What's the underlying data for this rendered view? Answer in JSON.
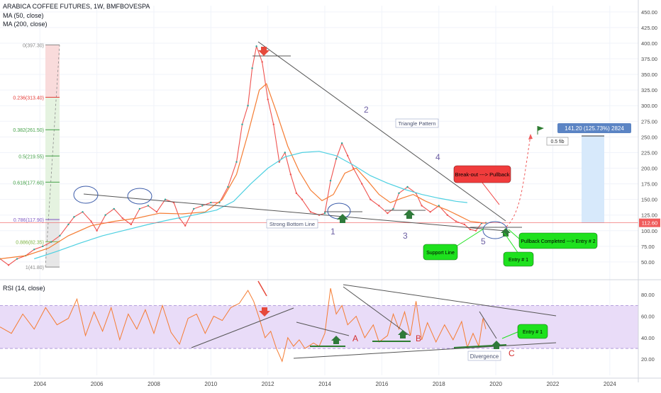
{
  "header": {
    "symbol_line": "ARABICA COFFEE FUTURES, 1W, BMFBOVESPA",
    "ma50_label": "MA (50, close)",
    "ma200_label": "MA (200, close)",
    "rsi_label": "RSI (14, close)"
  },
  "colors": {
    "price_up": "#26a69a",
    "price_down": "#ef5350",
    "ma50": "#f57c32",
    "ma200": "#4dd0e1",
    "rsi_line": "#f57c32",
    "rsi_band": "#e9dcf8",
    "trendline": "#555555",
    "green_label": "#1ee11e",
    "red_label": "#f03c3c",
    "current_price": "#f05b5b",
    "projection_box": "#d7e9fb",
    "projection_label": "#5b84c4"
  },
  "chart_data": [
    {
      "type": "line",
      "pane": "price",
      "x_axis": {
        "labels": [
          "2004",
          "2006",
          "2008",
          "2010",
          "2012",
          "2014",
          "2016",
          "2018",
          "2020",
          "2022",
          "2024"
        ],
        "range": [
          2002.6,
          2025.0
        ]
      },
      "y_axis": {
        "labels": [
          "450.00",
          "425.00",
          "400.00",
          "375.00",
          "350.00",
          "325.00",
          "300.00",
          "275.00",
          "250.00",
          "225.00",
          "200.00",
          "175.00",
          "150.00",
          "125.00",
          "100.00",
          "75.00",
          "50.00"
        ],
        "range": [
          25,
          460
        ]
      },
      "current_price": {
        "value": 112.6,
        "label": "112.60"
      },
      "series": [
        {
          "key": "price",
          "points": [
            [
              2002.6,
              55
            ],
            [
              2002.9,
              45
            ],
            [
              2003.2,
              55
            ],
            [
              2003.5,
              60
            ],
            [
              2003.8,
              70
            ],
            [
              2004.1,
              75
            ],
            [
              2004.4,
              82
            ],
            [
              2004.7,
              92
            ],
            [
              2005.0,
              110
            ],
            [
              2005.2,
              122
            ],
            [
              2005.5,
              130
            ],
            [
              2005.8,
              115
            ],
            [
              2006.0,
              100
            ],
            [
              2006.3,
              125
            ],
            [
              2006.6,
              135
            ],
            [
              2006.9,
              120
            ],
            [
              2007.2,
              110
            ],
            [
              2007.5,
              135
            ],
            [
              2007.8,
              140
            ],
            [
              2008.1,
              130
            ],
            [
              2008.4,
              150
            ],
            [
              2008.7,
              145
            ],
            [
              2008.9,
              120
            ],
            [
              2009.1,
              108
            ],
            [
              2009.4,
              135
            ],
            [
              2009.7,
              140
            ],
            [
              2010.0,
              145
            ],
            [
              2010.3,
              145
            ],
            [
              2010.6,
              170
            ],
            [
              2010.9,
              210
            ],
            [
              2011.1,
              270
            ],
            [
              2011.3,
              300
            ],
            [
              2011.45,
              360
            ],
            [
              2011.6,
              395
            ],
            [
              2011.8,
              370
            ],
            [
              2012.0,
              310
            ],
            [
              2012.2,
              270
            ],
            [
              2012.4,
              210
            ],
            [
              2012.6,
              225
            ],
            [
              2012.8,
              190
            ],
            [
              2013.0,
              160
            ],
            [
              2013.2,
              150
            ],
            [
              2013.5,
              130
            ],
            [
              2013.8,
              125
            ],
            [
              2014.0,
              128
            ],
            [
              2014.2,
              180
            ],
            [
              2014.4,
              215
            ],
            [
              2014.6,
              240
            ],
            [
              2014.8,
              220
            ],
            [
              2015.0,
              200
            ],
            [
              2015.3,
              175
            ],
            [
              2015.6,
              150
            ],
            [
              2015.9,
              140
            ],
            [
              2016.2,
              128
            ],
            [
              2016.4,
              135
            ],
            [
              2016.6,
              160
            ],
            [
              2016.9,
              170
            ],
            [
              2017.2,
              160
            ],
            [
              2017.4,
              140
            ],
            [
              2017.7,
              130
            ],
            [
              2018.0,
              140
            ],
            [
              2018.3,
              125
            ],
            [
              2018.6,
              115
            ],
            [
              2018.9,
              110
            ],
            [
              2019.1,
              102
            ],
            [
              2019.3,
              100
            ],
            [
              2019.5,
              112
            ],
            [
              2019.65,
              112.6
            ]
          ]
        },
        {
          "key": "ma50",
          "points": [
            [
              2002.6,
              55
            ],
            [
              2003.5,
              60
            ],
            [
              2004.3,
              72
            ],
            [
              2005.0,
              92
            ],
            [
              2005.8,
              108
            ],
            [
              2006.6,
              115
            ],
            [
              2007.4,
              120
            ],
            [
              2008.2,
              128
            ],
            [
              2009.0,
              127
            ],
            [
              2009.8,
              130
            ],
            [
              2010.4,
              150
            ],
            [
              2010.9,
              190
            ],
            [
              2011.3,
              255
            ],
            [
              2011.7,
              325
            ],
            [
              2011.95,
              335
            ],
            [
              2012.3,
              290
            ],
            [
              2012.7,
              235
            ],
            [
              2013.1,
              195
            ],
            [
              2013.5,
              165
            ],
            [
              2013.9,
              148
            ],
            [
              2014.3,
              158
            ],
            [
              2014.7,
              192
            ],
            [
              2015.1,
              200
            ],
            [
              2015.5,
              180
            ],
            [
              2015.9,
              158
            ],
            [
              2016.3,
              145
            ],
            [
              2016.7,
              152
            ],
            [
              2017.1,
              158
            ],
            [
              2017.5,
              148
            ],
            [
              2017.9,
              140
            ],
            [
              2018.3,
              133
            ],
            [
              2018.7,
              124
            ],
            [
              2019.1,
              115
            ],
            [
              2019.65,
              112
            ]
          ]
        },
        {
          "key": "ma200",
          "points": [
            [
              2003.8,
              55
            ],
            [
              2004.6,
              67
            ],
            [
              2005.4,
              80
            ],
            [
              2006.2,
              92
            ],
            [
              2007.0,
              101
            ],
            [
              2007.8,
              110
            ],
            [
              2008.6,
              118
            ],
            [
              2009.4,
              125
            ],
            [
              2010.2,
              133
            ],
            [
              2010.8,
              147
            ],
            [
              2011.4,
              175
            ],
            [
              2012.0,
              200
            ],
            [
              2012.6,
              218
            ],
            [
              2013.2,
              225
            ],
            [
              2013.8,
              227
            ],
            [
              2014.4,
              220
            ],
            [
              2015.0,
              205
            ],
            [
              2015.6,
              188
            ],
            [
              2016.2,
              176
            ],
            [
              2016.8,
              166
            ],
            [
              2017.4,
              158
            ],
            [
              2018.0,
              152
            ],
            [
              2018.6,
              147
            ],
            [
              2019.0,
              145
            ]
          ]
        }
      ]
    },
    {
      "type": "line",
      "pane": "rsi",
      "y_axis": {
        "labels": [
          "80.00",
          "60.00",
          "40.00",
          "20.00"
        ],
        "range": [
          5,
          92
        ]
      },
      "band": [
        30,
        70
      ],
      "series": [
        {
          "key": "rsi",
          "points": [
            [
              2002.6,
              50
            ],
            [
              2003.0,
              44
            ],
            [
              2003.4,
              62
            ],
            [
              2003.8,
              48
            ],
            [
              2004.2,
              68
            ],
            [
              2004.6,
              52
            ],
            [
              2005.0,
              58
            ],
            [
              2005.3,
              76
            ],
            [
              2005.6,
              42
            ],
            [
              2005.9,
              64
            ],
            [
              2006.2,
              46
            ],
            [
              2006.5,
              68
            ],
            [
              2006.8,
              38
            ],
            [
              2007.1,
              62
            ],
            [
              2007.4,
              48
            ],
            [
              2007.7,
              66
            ],
            [
              2008.0,
              44
            ],
            [
              2008.3,
              70
            ],
            [
              2008.6,
              45
            ],
            [
              2008.9,
              34
            ],
            [
              2009.2,
              58
            ],
            [
              2009.5,
              62
            ],
            [
              2009.8,
              44
            ],
            [
              2010.1,
              60
            ],
            [
              2010.4,
              56
            ],
            [
              2010.7,
              68
            ],
            [
              2011.0,
              72
            ],
            [
              2011.3,
              84
            ],
            [
              2011.5,
              74
            ],
            [
              2011.7,
              58
            ],
            [
              2011.9,
              40
            ],
            [
              2012.1,
              46
            ],
            [
              2012.3,
              30
            ],
            [
              2012.5,
              18
            ],
            [
              2012.7,
              40
            ],
            [
              2012.9,
              32
            ],
            [
              2013.1,
              38
            ],
            [
              2013.3,
              30
            ],
            [
              2013.6,
              35
            ],
            [
              2013.8,
              32
            ],
            [
              2014.0,
              44
            ],
            [
              2014.2,
              86
            ],
            [
              2014.4,
              62
            ],
            [
              2014.6,
              70
            ],
            [
              2014.8,
              52
            ],
            [
              2015.1,
              60
            ],
            [
              2015.4,
              40
            ],
            [
              2015.7,
              52
            ],
            [
              2015.9,
              36
            ],
            [
              2016.2,
              42
            ],
            [
              2016.4,
              62
            ],
            [
              2016.6,
              48
            ],
            [
              2016.8,
              64
            ],
            [
              2017.0,
              42
            ],
            [
              2017.2,
              74
            ],
            [
              2017.4,
              38
            ],
            [
              2017.6,
              54
            ],
            [
              2017.9,
              36
            ],
            [
              2018.2,
              52
            ],
            [
              2018.5,
              38
            ],
            [
              2018.8,
              55
            ],
            [
              2019.0,
              31
            ],
            [
              2019.2,
              44
            ],
            [
              2019.4,
              32
            ],
            [
              2019.55,
              58
            ],
            [
              2019.65,
              48
            ]
          ]
        }
      ]
    }
  ],
  "fib": {
    "levels": [
      {
        "ratio": 0,
        "label": "0(397.30)",
        "color": "#888888"
      },
      {
        "ratio": 0.236,
        "label": "0.236(313.40)",
        "color": "#e53935"
      },
      {
        "ratio": 0.382,
        "label": "0.382(261.50)",
        "color": "#43a047"
      },
      {
        "ratio": 0.5,
        "label": "0.5(219.55)",
        "color": "#43a047"
      },
      {
        "ratio": 0.618,
        "label": "0.618(177.60)",
        "color": "#43a047"
      },
      {
        "ratio": 0.786,
        "label": "0.786(117.90)",
        "color": "#7e57c2"
      },
      {
        "ratio": 0.886,
        "label": "0.886(82.35)",
        "color": "#7cb342"
      },
      {
        "ratio": 1,
        "label": "1(41.80)",
        "color": "#888888"
      }
    ]
  },
  "annotations": {
    "triangle_pattern": "Triangle Pattern",
    "strong_bottom_line": "Strong Bottom Line",
    "break_out": "Break-out ---> Pullback",
    "pullback_completed": "Pullback Completed ---> Entry # 2",
    "support_line": "Support Line",
    "entry1_price": "Entry # 1",
    "entry1_rsi": "Entry # 1",
    "divergence": "Divergence",
    "fib_half": "0.5 fib",
    "projection": "141.20 (125.73%) 2824",
    "wave_1": "1",
    "wave_2": "2",
    "wave_3": "3",
    "wave_4": "4",
    "wave_5": "5",
    "rsi_a": "A",
    "rsi_b": "B",
    "rsi_c": "C"
  }
}
